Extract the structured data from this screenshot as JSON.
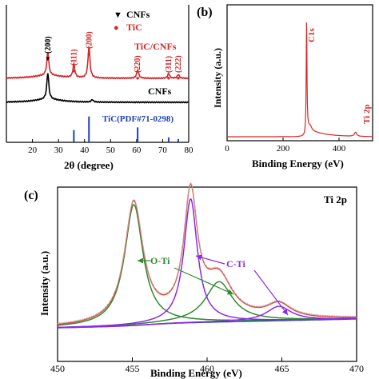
{
  "panels": {
    "a": {
      "type": "line",
      "xlabel": "2θ  (degree)",
      "xlim": [
        10,
        80
      ],
      "xticks": [
        20,
        30,
        40,
        50,
        60,
        70,
        80
      ],
      "xtick_labels": [
        "20",
        "30",
        "40",
        "50",
        "60",
        "70",
        "80"
      ],
      "legend": [
        {
          "marker": "▼",
          "text": "CNFs",
          "color": "#000000"
        },
        {
          "marker": "●",
          "text": "TiC",
          "color": "#d62728"
        }
      ],
      "series": [
        {
          "name": "TiC/CNFs",
          "color": "#d62728",
          "baseline": 98,
          "peaks": [
            [
              25.9,
              0.48
            ],
            [
              35.9,
              0.28
            ],
            [
              41.7,
              0.65
            ],
            [
              60.4,
              0.18
            ],
            [
              72.3,
              0.1
            ],
            [
              76.0,
              0.08
            ]
          ]
        },
        {
          "name": "CNFs",
          "color": "#000000",
          "baseline": 128,
          "peaks": [
            [
              25.9,
              0.55
            ],
            [
              43.0,
              0.05
            ]
          ]
        }
      ],
      "peak_labels": [
        {
          "x": 25.9,
          "text": "(200)",
          "marker": "▼"
        },
        {
          "x": 35.9,
          "text": "(111)",
          "marker": "●"
        },
        {
          "x": 41.7,
          "text": "(200)",
          "marker": "●"
        },
        {
          "x": 60.4,
          "text": "(220)",
          "marker": "●"
        },
        {
          "x": 72.3,
          "text": "(311)",
          "marker": "●"
        },
        {
          "x": 76.0,
          "text": "(222)",
          "marker": "●"
        }
      ],
      "reference": {
        "label": "TiC(PDF#71-0298)",
        "color": "#1f3fbf",
        "sticks": [
          [
            35.9,
            0.45
          ],
          [
            41.7,
            0.95
          ],
          [
            60.4,
            0.55
          ],
          [
            72.3,
            0.18
          ],
          [
            76.0,
            0.12
          ]
        ]
      }
    },
    "b": {
      "type": "line",
      "panel_label": "(b)",
      "xlabel": "Binding Energy  (eV)",
      "ylabel": "Intensity (a.u.)",
      "xlim": [
        0,
        520
      ],
      "xticks": [
        0,
        200,
        400
      ],
      "xtick_labels": [
        "0",
        "200",
        "400"
      ],
      "color": "#d62728",
      "annotations": [
        {
          "x": 284,
          "text": "C1s"
        },
        {
          "x": 459,
          "text": "Ti 2p"
        }
      ]
    },
    "c": {
      "type": "line",
      "panel_label": "(c)",
      "title": "Ti 2p",
      "xlabel": "Binding Energy  (eV)",
      "ylabel": "Intensity (a.u.)",
      "xlim": [
        450,
        470
      ],
      "xticks": [
        450,
        455,
        460,
        465,
        470
      ],
      "xtick_labels": [
        "450",
        "455",
        "460",
        "465",
        "470"
      ],
      "components": [
        {
          "label": "O-Ti",
          "color": "#2e8b2e",
          "peaks": [
            [
              455.1,
              0.84,
              0.75
            ],
            [
              460.8,
              0.28,
              1.1
            ]
          ]
        },
        {
          "label": "C-Ti",
          "color": "#8a2be2",
          "peaks": [
            [
              458.9,
              0.86,
              0.55
            ],
            [
              464.8,
              0.1,
              1.0
            ]
          ]
        }
      ],
      "envelope_color": "#e8453c",
      "background_color": "#1f3fbf"
    }
  }
}
